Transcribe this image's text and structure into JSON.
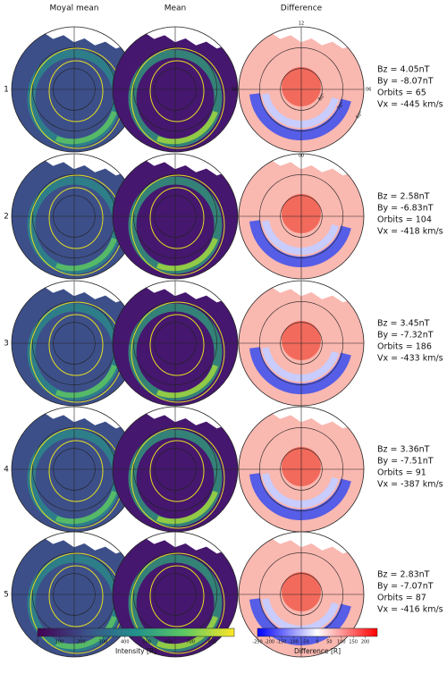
{
  "columns": [
    "Moyal mean",
    "Mean",
    "Difference"
  ],
  "rows": [
    {
      "label": "1",
      "params": [
        "Bz = 4.05nT",
        "By = -8.07nT",
        "Orbits = 65",
        "Vx = -445 km/s"
      ]
    },
    {
      "label": "2",
      "params": [
        "Bz = 2.58nT",
        "By = -6.83nT",
        "Orbits = 104",
        "Vx = -418 km/s"
      ]
    },
    {
      "label": "3",
      "params": [
        "Bz = 3.45nT",
        "By = -7.32nT",
        "Orbits = 186",
        "Vx = -433 km/s"
      ]
    },
    {
      "label": "4",
      "params": [
        "Bz = 3.36nT",
        "By = -7.51nT",
        "Orbits = 91",
        "Vx = -387 km/s"
      ]
    },
    {
      "label": "5",
      "params": [
        "Bz = 2.83nT",
        "By = -7.07nT",
        "Orbits = 87",
        "Vx = -416 km/s"
      ]
    }
  ],
  "polar_labels": {
    "top": "12",
    "left": "18",
    "right": "06",
    "bottom": "00",
    "rings": [
      "80°",
      "70°",
      "60°"
    ]
  },
  "colorbars": [
    {
      "label": "Intensity [R]",
      "lim": [
        0,
        900
      ],
      "ticks": [
        0,
        100,
        200,
        300,
        400,
        500,
        600,
        700,
        800
      ]
    },
    {
      "label": "Difference [R]",
      "lim": [
        -250,
        250
      ],
      "ticks": [
        -250,
        -200,
        -150,
        -100,
        -50,
        0,
        50,
        100,
        150,
        200
      ]
    }
  ]
}
